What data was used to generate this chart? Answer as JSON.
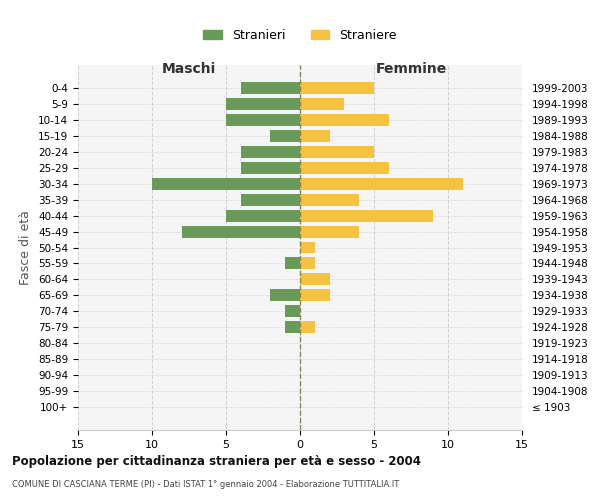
{
  "age_groups": [
    "100+",
    "95-99",
    "90-94",
    "85-89",
    "80-84",
    "75-79",
    "70-74",
    "65-69",
    "60-64",
    "55-59",
    "50-54",
    "45-49",
    "40-44",
    "35-39",
    "30-34",
    "25-29",
    "20-24",
    "15-19",
    "10-14",
    "5-9",
    "0-4"
  ],
  "birth_years": [
    "≤ 1903",
    "1904-1908",
    "1909-1913",
    "1914-1918",
    "1919-1923",
    "1924-1928",
    "1929-1933",
    "1934-1938",
    "1939-1943",
    "1944-1948",
    "1949-1953",
    "1954-1958",
    "1959-1963",
    "1964-1968",
    "1969-1973",
    "1974-1978",
    "1979-1983",
    "1984-1988",
    "1989-1993",
    "1994-1998",
    "1999-2003"
  ],
  "maschi": [
    0,
    0,
    0,
    0,
    0,
    1,
    1,
    2,
    0,
    1,
    0,
    8,
    5,
    4,
    10,
    4,
    4,
    2,
    5,
    5,
    4
  ],
  "femmine": [
    0,
    0,
    0,
    0,
    0,
    1,
    0,
    2,
    2,
    1,
    1,
    4,
    9,
    4,
    11,
    6,
    5,
    2,
    6,
    3,
    5
  ],
  "color_maschi": "#6a9a5a",
  "color_femmine": "#f5c242",
  "title": "Popolazione per cittadinanza straniera per età e sesso - 2004",
  "subtitle": "COMUNE DI CASCIANA TERME (PI) - Dati ISTAT 1° gennaio 2004 - Elaborazione TUTTITALIA.IT",
  "ylabel_left": "Fasce di età",
  "xlabel_left": "Maschi",
  "xlabel_right": "Femmine",
  "legend_maschi": "Stranieri",
  "legend_femmine": "Straniere",
  "xlim": 15,
  "background_color": "#ffffff",
  "axes_bg": "#f5f5f5",
  "grid_color": "#cccccc"
}
